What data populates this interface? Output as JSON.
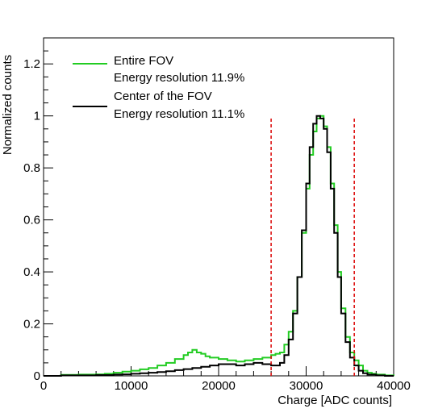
{
  "chart_data": {
    "type": "line",
    "title": "",
    "xlabel": "Charge [ADC counts]",
    "ylabel": "Normalized counts",
    "xlim": [
      0,
      40000
    ],
    "ylim": [
      0,
      1.3
    ],
    "x_ticks": [
      0,
      10000,
      20000,
      30000,
      40000
    ],
    "x_tick_labels": [
      "0",
      "10000",
      "20000",
      "30000",
      "40000"
    ],
    "y_ticks": [
      0,
      0.2,
      0.4,
      0.6,
      0.8,
      1,
      1.2
    ],
    "y_tick_labels": [
      "0",
      "0.2",
      "0.4",
      "0.6",
      "0.8",
      "1",
      "1.2"
    ],
    "grid": false,
    "legend_position": "top-left",
    "vertical_lines": [
      {
        "x": 26000,
        "color": "#dd1111",
        "style": "dashed",
        "ymax": 0.99
      },
      {
        "x": 35500,
        "color": "#dd1111",
        "style": "dashed",
        "ymax": 0.99
      }
    ],
    "series": [
      {
        "name": "Entire FOV",
        "legend_line2": "Energy resolution 11.9%",
        "color": "#22cc22",
        "x": [
          0,
          2000,
          4000,
          6000,
          7000,
          8000,
          9000,
          10000,
          11000,
          12000,
          13000,
          14000,
          15000,
          16000,
          16500,
          17000,
          17500,
          18000,
          18500,
          19000,
          20000,
          21000,
          22000,
          23000,
          24000,
          25000,
          26000,
          26500,
          27000,
          27500,
          28000,
          28500,
          29000,
          29500,
          30000,
          30400,
          30800,
          31200,
          31600,
          32000,
          32400,
          32800,
          33200,
          33600,
          34000,
          34500,
          35000,
          35500,
          36000,
          36500,
          37000,
          37500,
          38000,
          39000,
          40000
        ],
        "values": [
          0.0,
          0.004,
          0.005,
          0.006,
          0.008,
          0.012,
          0.016,
          0.02,
          0.025,
          0.03,
          0.04,
          0.05,
          0.065,
          0.08,
          0.09,
          0.1,
          0.09,
          0.085,
          0.075,
          0.07,
          0.065,
          0.06,
          0.055,
          0.06,
          0.065,
          0.07,
          0.08,
          0.085,
          0.09,
          0.12,
          0.17,
          0.25,
          0.38,
          0.55,
          0.72,
          0.85,
          0.94,
          0.99,
          1.0,
          0.96,
          0.88,
          0.74,
          0.58,
          0.4,
          0.26,
          0.15,
          0.09,
          0.06,
          0.04,
          0.02,
          0.012,
          0.008,
          0.005,
          0.002,
          0.0
        ]
      },
      {
        "name": "Center of the FOV",
        "legend_line2": "Energy resolution 11.1%",
        "color": "#000000",
        "x": [
          0,
          2000,
          4000,
          6000,
          8000,
          9000,
          10000,
          11000,
          12000,
          13000,
          14000,
          15000,
          16000,
          17000,
          18000,
          19000,
          20000,
          21000,
          22000,
          23000,
          24000,
          25000,
          26000,
          26500,
          27000,
          27500,
          28000,
          28500,
          29000,
          29500,
          30000,
          30400,
          30800,
          31200,
          31600,
          32000,
          32400,
          32800,
          33200,
          33600,
          34000,
          34500,
          35000,
          35500,
          36000,
          36500,
          37000,
          38000,
          39000,
          40000
        ],
        "values": [
          0.0,
          0.002,
          0.002,
          0.003,
          0.005,
          0.006,
          0.008,
          0.01,
          0.012,
          0.015,
          0.018,
          0.022,
          0.026,
          0.03,
          0.035,
          0.04,
          0.045,
          0.045,
          0.04,
          0.045,
          0.05,
          0.045,
          0.04,
          0.04,
          0.05,
          0.08,
          0.14,
          0.24,
          0.38,
          0.56,
          0.74,
          0.88,
          0.97,
          1.0,
          0.99,
          0.95,
          0.86,
          0.72,
          0.55,
          0.38,
          0.24,
          0.13,
          0.07,
          0.04,
          0.02,
          0.01,
          0.005,
          0.002,
          0.0,
          0.0
        ]
      }
    ]
  }
}
